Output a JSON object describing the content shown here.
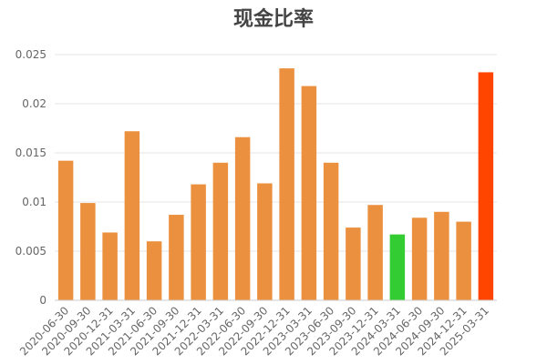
{
  "chart_data": {
    "type": "bar",
    "title": "现金比率",
    "xlabel": "",
    "ylabel": "",
    "ylim": [
      0,
      0.025
    ],
    "yticks": [
      0,
      0.005,
      0.01,
      0.015,
      0.02,
      0.025
    ],
    "ytick_labels": [
      "0",
      "0.005",
      "0.01",
      "0.015",
      "0.02",
      "0.025"
    ],
    "grid": true,
    "legend": "none",
    "categories": [
      "2020-06-30",
      "2020-09-30",
      "2020-12-31",
      "2021-03-31",
      "2021-06-30",
      "2021-09-30",
      "2021-12-31",
      "2022-03-31",
      "2022-06-30",
      "2022-09-30",
      "2022-12-31",
      "2023-03-31",
      "2023-06-30",
      "2023-09-30",
      "2023-12-31",
      "2024-03-31",
      "2024-06-30",
      "2024-09-30",
      "2024-12-31",
      "2025-03-31"
    ],
    "values": [
      0.0142,
      0.0099,
      0.0069,
      0.0172,
      0.006,
      0.0087,
      0.0118,
      0.014,
      0.0166,
      0.0119,
      0.0236,
      0.0218,
      0.014,
      0.0074,
      0.0097,
      0.0067,
      0.0084,
      0.009,
      0.008,
      0.0232
    ],
    "bar_colors": [
      "#eb903e",
      "#eb903e",
      "#eb903e",
      "#eb903e",
      "#eb903e",
      "#eb903e",
      "#eb903e",
      "#eb903e",
      "#eb903e",
      "#eb903e",
      "#eb903e",
      "#eb903e",
      "#eb903e",
      "#eb903e",
      "#eb903e",
      "#33cc33",
      "#eb903e",
      "#eb903e",
      "#eb903e",
      "#ff4500"
    ]
  }
}
